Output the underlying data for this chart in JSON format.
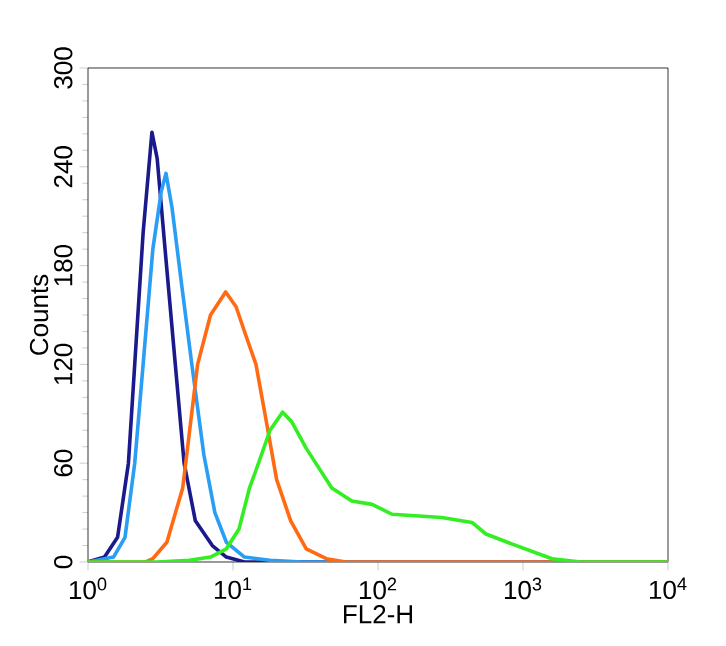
{
  "chart_data": {
    "type": "line",
    "xlabel": "FL2-H",
    "ylabel": "Counts",
    "log": "x",
    "xlim": [
      1,
      10000
    ],
    "ylim": [
      0,
      300
    ],
    "xticks": [
      {
        "value": 1,
        "label": "10$^{0}$"
      },
      {
        "value": 10,
        "label": "10$^{1}$"
      },
      {
        "value": 100,
        "label": "10$^{2}$"
      },
      {
        "value": 1000,
        "label": "10$^{3}$"
      },
      {
        "value": 10000,
        "label": "10$^{4}$"
      }
    ],
    "yticks": [
      0,
      60,
      120,
      180,
      240,
      300
    ],
    "grid": false,
    "marker": "none",
    "line_style": "solid",
    "series": [
      {
        "color": "#1a1a8c",
        "x": [
          1,
          1.3,
          1.6,
          1.9,
          2.1,
          2.4,
          2.76,
          3.0,
          3.4,
          4.0,
          4.6,
          5.5,
          7.2,
          9,
          12,
          10000
        ],
        "values": [
          0,
          3,
          15,
          60,
          120,
          200,
          261,
          245,
          190,
          120,
          60,
          25,
          10,
          3,
          0,
          0
        ]
      },
      {
        "color": "#2a9df4",
        "x": [
          1,
          1.5,
          1.8,
          2.1,
          2.4,
          2.8,
          3.2,
          3.45,
          3.8,
          4.4,
          5.2,
          6.3,
          7.5,
          9,
          12,
          18,
          30,
          10000
        ],
        "values": [
          0,
          3,
          15,
          60,
          120,
          190,
          225,
          236,
          215,
          170,
          120,
          65,
          30,
          12,
          3,
          1,
          0,
          0
        ]
      },
      {
        "color": "#ff6a13",
        "x": [
          1,
          2.5,
          2.8,
          3.5,
          4.5,
          5.7,
          7,
          8.9,
          10.5,
          12,
          14.4,
          17,
          20,
          25,
          32,
          44,
          60,
          10000
        ],
        "values": [
          0,
          0,
          2,
          12,
          45,
          120,
          150,
          164,
          155,
          140,
          120,
          85,
          50,
          25,
          8,
          2,
          0,
          0
        ]
      },
      {
        "color": "#33ee22",
        "x": [
          1,
          3,
          5,
          7,
          9,
          11,
          13,
          15,
          18,
          22,
          25.5,
          32,
          48,
          66,
          91,
          125,
          275,
          445,
          555,
          835,
          1585,
          2500,
          10000
        ],
        "values": [
          0,
          0,
          1,
          3,
          8,
          20,
          45,
          60,
          80,
          91,
          85,
          69,
          45,
          37,
          35,
          29,
          27,
          24,
          17,
          11,
          2,
          0,
          0
        ]
      }
    ]
  }
}
